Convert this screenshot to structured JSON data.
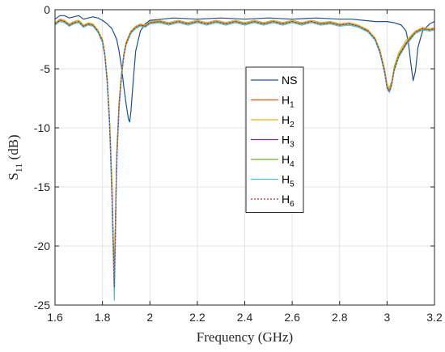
{
  "chart_data": {
    "type": "line",
    "title": "",
    "xlabel": "Frequency (GHz)",
    "ylabel": {
      "main": "S",
      "sub": "11",
      "unit": " (dB)"
    },
    "xlim": [
      1.6,
      3.2
    ],
    "ylim": [
      -25,
      0
    ],
    "xticks": [
      1.6,
      1.8,
      2.0,
      2.2,
      2.4,
      2.6,
      2.8,
      3.0,
      3.2
    ],
    "xtick_labels": [
      "1.6",
      "1.8",
      "2",
      "2.2",
      "2.4",
      "2.6",
      "2.8",
      "3",
      "3.2"
    ],
    "yticks": [
      0,
      -5,
      -10,
      -15,
      -20,
      -25
    ],
    "ytick_labels": [
      "0",
      "-5",
      "-10",
      "-15",
      "-20",
      "-25"
    ],
    "grid": true,
    "legend_position": "center",
    "series": [
      {
        "name": "NS",
        "label_main": "NS",
        "label_sub": "",
        "color": "#1f4e9a",
        "dash": "",
        "x": [
          1.6,
          1.62,
          1.64,
          1.66,
          1.68,
          1.7,
          1.72,
          1.74,
          1.76,
          1.78,
          1.8,
          1.82,
          1.84,
          1.86,
          1.87,
          1.88,
          1.89,
          1.9,
          1.91,
          1.915,
          1.92,
          1.93,
          1.94,
          1.96,
          1.98,
          2.0,
          2.05,
          2.1,
          2.2,
          2.3,
          2.4,
          2.5,
          2.6,
          2.7,
          2.8,
          2.85,
          2.9,
          2.95,
          3.0,
          3.03,
          3.06,
          3.08,
          3.09,
          3.1,
          3.11,
          3.12,
          3.13,
          3.15,
          3.18,
          3.2
        ],
        "y": [
          -0.8,
          -0.5,
          -0.5,
          -0.7,
          -0.6,
          -0.5,
          -0.8,
          -0.7,
          -0.6,
          -0.7,
          -0.9,
          -1.2,
          -1.6,
          -2.5,
          -3.5,
          -4.8,
          -6.5,
          -8.0,
          -9.3,
          -9.5,
          -8.6,
          -6.0,
          -3.5,
          -1.8,
          -1.2,
          -0.9,
          -0.8,
          -0.7,
          -0.8,
          -0.7,
          -0.8,
          -0.7,
          -0.8,
          -0.7,
          -0.8,
          -0.8,
          -0.9,
          -1.0,
          -1.0,
          -1.1,
          -1.3,
          -1.8,
          -2.8,
          -4.5,
          -6.0,
          -5.2,
          -3.2,
          -1.8,
          -1.2,
          -1.0
        ]
      },
      {
        "name": "H1",
        "label_main": "H",
        "label_sub": "1",
        "color": "#d95319",
        "dash": "",
        "x": [
          1.6,
          1.62,
          1.64,
          1.66,
          1.68,
          1.7,
          1.72,
          1.74,
          1.76,
          1.78,
          1.8,
          1.81,
          1.82,
          1.83,
          1.84,
          1.845,
          1.85,
          1.855,
          1.86,
          1.87,
          1.88,
          1.89,
          1.9,
          1.92,
          1.94,
          1.96,
          1.98,
          2.0,
          2.04,
          2.08,
          2.12,
          2.16,
          2.2,
          2.24,
          2.28,
          2.32,
          2.36,
          2.4,
          2.44,
          2.48,
          2.52,
          2.56,
          2.6,
          2.64,
          2.68,
          2.72,
          2.76,
          2.8,
          2.84,
          2.88,
          2.92,
          2.95,
          2.97,
          2.99,
          3.0,
          3.01,
          3.02,
          3.03,
          3.05,
          3.08,
          3.12,
          3.15,
          3.18,
          3.2
        ],
        "y": [
          -1.2,
          -0.8,
          -0.9,
          -1.3,
          -1.0,
          -0.9,
          -1.3,
          -1.2,
          -1.3,
          -1.8,
          -2.6,
          -3.8,
          -6.0,
          -9.5,
          -15.0,
          -19.0,
          -22.5,
          -18.0,
          -12.5,
          -8.0,
          -5.5,
          -3.8,
          -2.8,
          -1.8,
          -1.4,
          -1.2,
          -1.4,
          -1.0,
          -0.9,
          -1.1,
          -0.9,
          -1.1,
          -0.9,
          -1.1,
          -0.9,
          -1.1,
          -0.9,
          -1.1,
          -0.9,
          -1.1,
          -0.9,
          -1.1,
          -0.9,
          -1.1,
          -0.9,
          -1.1,
          -1.0,
          -1.2,
          -1.1,
          -1.4,
          -1.8,
          -2.5,
          -3.5,
          -5.2,
          -6.5,
          -6.8,
          -6.2,
          -5.0,
          -3.8,
          -2.8,
          -1.8,
          -1.6,
          -1.7,
          -1.6
        ]
      },
      {
        "name": "H2",
        "label_main": "H",
        "label_sub": "2",
        "color": "#edb120",
        "dash": "",
        "x": [
          1.6,
          1.62,
          1.64,
          1.66,
          1.68,
          1.7,
          1.72,
          1.74,
          1.76,
          1.78,
          1.8,
          1.81,
          1.82,
          1.83,
          1.84,
          1.845,
          1.85,
          1.855,
          1.86,
          1.87,
          1.88,
          1.89,
          1.9,
          1.92,
          1.94,
          1.96,
          1.98,
          2.0,
          2.04,
          2.08,
          2.12,
          2.16,
          2.2,
          2.24,
          2.28,
          2.32,
          2.36,
          2.4,
          2.44,
          2.48,
          2.52,
          2.56,
          2.6,
          2.64,
          2.68,
          2.72,
          2.76,
          2.8,
          2.84,
          2.88,
          2.92,
          2.95,
          2.97,
          2.99,
          3.0,
          3.01,
          3.02,
          3.03,
          3.05,
          3.08,
          3.12,
          3.15,
          3.18,
          3.2
        ],
        "y": [
          -1.1,
          -0.8,
          -0.9,
          -1.2,
          -1.0,
          -0.9,
          -1.3,
          -1.1,
          -1.2,
          -1.7,
          -2.5,
          -3.7,
          -5.8,
          -9.2,
          -14.5,
          -18.8,
          -22.0,
          -17.8,
          -12.2,
          -7.8,
          -5.4,
          -3.7,
          -2.7,
          -1.8,
          -1.4,
          -1.2,
          -1.3,
          -1.0,
          -0.9,
          -1.1,
          -0.9,
          -1.1,
          -0.9,
          -1.1,
          -0.9,
          -1.1,
          -0.9,
          -1.1,
          -0.9,
          -1.1,
          -0.9,
          -1.1,
          -0.9,
          -1.1,
          -0.9,
          -1.1,
          -1.0,
          -1.2,
          -1.1,
          -1.3,
          -1.7,
          -2.4,
          -3.4,
          -5.0,
          -6.3,
          -6.6,
          -6.0,
          -4.8,
          -3.6,
          -2.6,
          -1.8,
          -1.5,
          -1.6,
          -1.5
        ]
      },
      {
        "name": "H3",
        "label_main": "H",
        "label_sub": "3",
        "color": "#7e2f8e",
        "dash": "",
        "x": [
          1.6,
          1.62,
          1.64,
          1.66,
          1.68,
          1.7,
          1.72,
          1.74,
          1.76,
          1.78,
          1.8,
          1.81,
          1.82,
          1.83,
          1.84,
          1.845,
          1.85,
          1.855,
          1.86,
          1.87,
          1.88,
          1.89,
          1.9,
          1.92,
          1.94,
          1.96,
          1.98,
          2.0,
          2.04,
          2.08,
          2.12,
          2.16,
          2.2,
          2.24,
          2.28,
          2.32,
          2.36,
          2.4,
          2.44,
          2.48,
          2.52,
          2.56,
          2.6,
          2.64,
          2.68,
          2.72,
          2.76,
          2.8,
          2.84,
          2.88,
          2.92,
          2.95,
          2.97,
          2.99,
          3.0,
          3.01,
          3.02,
          3.03,
          3.05,
          3.08,
          3.12,
          3.15,
          3.18,
          3.2
        ],
        "y": [
          -1.3,
          -0.9,
          -1.0,
          -1.4,
          -1.1,
          -1.0,
          -1.4,
          -1.2,
          -1.3,
          -1.8,
          -2.7,
          -3.9,
          -6.1,
          -9.6,
          -15.2,
          -19.3,
          -22.8,
          -18.2,
          -12.6,
          -8.1,
          -5.6,
          -3.9,
          -2.9,
          -1.9,
          -1.5,
          -1.3,
          -1.4,
          -1.1,
          -1.0,
          -1.2,
          -1.0,
          -1.2,
          -1.0,
          -1.2,
          -1.0,
          -1.2,
          -1.0,
          -1.2,
          -1.0,
          -1.2,
          -1.0,
          -1.2,
          -1.0,
          -1.2,
          -1.0,
          -1.2,
          -1.1,
          -1.3,
          -1.2,
          -1.4,
          -1.8,
          -2.5,
          -3.6,
          -5.3,
          -6.6,
          -6.9,
          -6.3,
          -5.1,
          -3.9,
          -2.9,
          -2.0,
          -1.7,
          -1.8,
          -1.7
        ]
      },
      {
        "name": "H4",
        "label_main": "H",
        "label_sub": "4",
        "color": "#77ac30",
        "dash": "",
        "x": [
          1.6,
          1.62,
          1.64,
          1.66,
          1.68,
          1.7,
          1.72,
          1.74,
          1.76,
          1.78,
          1.8,
          1.81,
          1.82,
          1.83,
          1.84,
          1.845,
          1.85,
          1.855,
          1.86,
          1.87,
          1.88,
          1.89,
          1.9,
          1.92,
          1.94,
          1.96,
          1.98,
          2.0,
          2.04,
          2.08,
          2.12,
          2.16,
          2.2,
          2.24,
          2.28,
          2.32,
          2.36,
          2.4,
          2.44,
          2.48,
          2.52,
          2.56,
          2.6,
          2.64,
          2.68,
          2.72,
          2.76,
          2.8,
          2.84,
          2.88,
          2.92,
          2.95,
          2.97,
          2.99,
          3.0,
          3.01,
          3.02,
          3.03,
          3.05,
          3.08,
          3.12,
          3.15,
          3.18,
          3.2
        ],
        "y": [
          -1.2,
          -0.9,
          -1.0,
          -1.3,
          -1.1,
          -1.0,
          -1.4,
          -1.2,
          -1.3,
          -1.8,
          -2.6,
          -3.8,
          -6.0,
          -9.4,
          -15.0,
          -19.2,
          -23.0,
          -18.4,
          -12.7,
          -8.2,
          -5.6,
          -3.9,
          -2.9,
          -1.9,
          -1.5,
          -1.3,
          -1.4,
          -1.1,
          -1.0,
          -1.2,
          -1.0,
          -1.2,
          -1.0,
          -1.2,
          -1.0,
          -1.2,
          -1.0,
          -1.2,
          -1.0,
          -1.2,
          -1.0,
          -1.2,
          -1.0,
          -1.2,
          -1.0,
          -1.2,
          -1.1,
          -1.3,
          -1.2,
          -1.4,
          -1.8,
          -2.5,
          -3.5,
          -5.2,
          -6.5,
          -6.8,
          -6.2,
          -5.0,
          -3.8,
          -2.8,
          -1.9,
          -1.6,
          -1.7,
          -1.6
        ]
      },
      {
        "name": "H5",
        "label_main": "H",
        "label_sub": "5",
        "color": "#4dbeee",
        "dash": "",
        "x": [
          1.6,
          1.62,
          1.64,
          1.66,
          1.68,
          1.7,
          1.72,
          1.74,
          1.76,
          1.78,
          1.8,
          1.81,
          1.82,
          1.83,
          1.84,
          1.845,
          1.85,
          1.855,
          1.86,
          1.87,
          1.88,
          1.89,
          1.9,
          1.92,
          1.94,
          1.96,
          1.98,
          2.0,
          2.04,
          2.08,
          2.12,
          2.16,
          2.2,
          2.24,
          2.28,
          2.32,
          2.36,
          2.4,
          2.44,
          2.48,
          2.52,
          2.56,
          2.6,
          2.64,
          2.68,
          2.72,
          2.76,
          2.8,
          2.84,
          2.88,
          2.92,
          2.95,
          2.97,
          2.99,
          3.0,
          3.01,
          3.02,
          3.03,
          3.05,
          3.08,
          3.12,
          3.15,
          3.18,
          3.2
        ],
        "y": [
          -1.3,
          -1.0,
          -1.1,
          -1.4,
          -1.2,
          -1.1,
          -1.5,
          -1.3,
          -1.4,
          -1.9,
          -2.8,
          -4.0,
          -6.3,
          -9.9,
          -16.0,
          -20.5,
          -24.6,
          -19.5,
          -13.2,
          -8.5,
          -5.8,
          -4.0,
          -3.0,
          -2.0,
          -1.6,
          -1.4,
          -1.5,
          -1.2,
          -1.1,
          -1.3,
          -1.1,
          -1.3,
          -1.1,
          -1.3,
          -1.1,
          -1.3,
          -1.1,
          -1.3,
          -1.1,
          -1.3,
          -1.1,
          -1.3,
          -1.1,
          -1.3,
          -1.1,
          -1.3,
          -1.2,
          -1.4,
          -1.3,
          -1.5,
          -1.9,
          -2.6,
          -3.7,
          -5.4,
          -6.7,
          -7.0,
          -6.4,
          -5.2,
          -4.0,
          -3.0,
          -2.0,
          -1.7,
          -1.8,
          -1.7
        ]
      },
      {
        "name": "H6",
        "label_main": "H",
        "label_sub": "6",
        "color": "#c1272d",
        "dash": "2,2",
        "x": [
          1.6,
          1.62,
          1.64,
          1.66,
          1.68,
          1.7,
          1.72,
          1.74,
          1.76,
          1.78,
          1.8,
          1.81,
          1.82,
          1.83,
          1.84,
          1.845,
          1.85,
          1.855,
          1.86,
          1.87,
          1.88,
          1.89,
          1.9,
          1.92,
          1.94,
          1.96,
          1.98,
          2.0,
          2.04,
          2.08,
          2.12,
          2.16,
          2.2,
          2.24,
          2.28,
          2.32,
          2.36,
          2.4,
          2.44,
          2.48,
          2.52,
          2.56,
          2.6,
          2.64,
          2.68,
          2.72,
          2.76,
          2.8,
          2.84,
          2.88,
          2.92,
          2.95,
          2.97,
          2.99,
          3.0,
          3.01,
          3.02,
          3.03,
          3.05,
          3.08,
          3.12,
          3.15,
          3.18,
          3.2
        ],
        "y": [
          -1.2,
          -0.9,
          -1.0,
          -1.3,
          -1.1,
          -1.0,
          -1.4,
          -1.2,
          -1.3,
          -1.8,
          -2.6,
          -3.8,
          -6.0,
          -9.5,
          -15.2,
          -19.5,
          -23.5,
          -18.8,
          -12.9,
          -8.3,
          -5.7,
          -3.9,
          -2.9,
          -1.9,
          -1.5,
          -1.3,
          -1.4,
          -1.1,
          -1.0,
          -1.2,
          -1.0,
          -1.2,
          -1.0,
          -1.2,
          -1.0,
          -1.2,
          -1.0,
          -1.2,
          -1.0,
          -1.2,
          -1.0,
          -1.2,
          -1.0,
          -1.2,
          -1.0,
          -1.2,
          -1.1,
          -1.3,
          -1.2,
          -1.4,
          -1.8,
          -2.5,
          -3.6,
          -5.3,
          -6.6,
          -6.9,
          -6.3,
          -5.1,
          -3.9,
          -2.9,
          -1.9,
          -1.6,
          -1.7,
          -1.6
        ]
      }
    ]
  }
}
